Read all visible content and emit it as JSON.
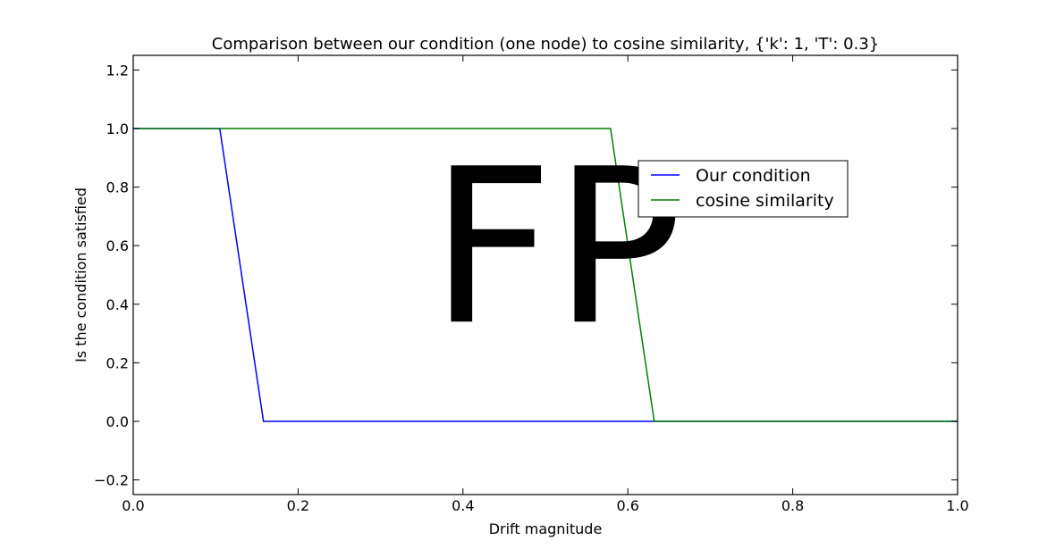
{
  "chart_data": {
    "type": "line",
    "title": "Comparison between our condition (one node) to cosine similarity, {'k': 1, 'T': 0.3}",
    "xlabel": "Drift magnitude",
    "ylabel": "Is the condition satisfied",
    "xlim": [
      0.0,
      1.0
    ],
    "ylim": [
      -0.25,
      1.25
    ],
    "xticks": [
      "0.0",
      "0.2",
      "0.4",
      "0.6",
      "0.8",
      "1.0"
    ],
    "yticks": [
      "−0.2",
      "0.0",
      "0.2",
      "0.4",
      "0.6",
      "0.8",
      "1.0",
      "1.2"
    ],
    "xtick_values": [
      0.0,
      0.2,
      0.4,
      0.6,
      0.8,
      1.0
    ],
    "ytick_values": [
      -0.2,
      0.0,
      0.2,
      0.4,
      0.6,
      0.8,
      1.0,
      1.2
    ],
    "grid": false,
    "legend_position": "upper right",
    "series": [
      {
        "name": "Our condition",
        "color": "#0000ff",
        "x": [
          0.0,
          0.105,
          0.158,
          1.0
        ],
        "y": [
          1.0,
          1.0,
          0.0,
          0.0
        ]
      },
      {
        "name": "cosine similarity",
        "color": "#008000",
        "x": [
          0.0,
          0.579,
          0.632,
          1.0
        ],
        "y": [
          1.0,
          1.0,
          0.0,
          0.0
        ]
      }
    ],
    "annotation": {
      "text": "FP",
      "x": 0.36,
      "y": 0.6
    }
  }
}
